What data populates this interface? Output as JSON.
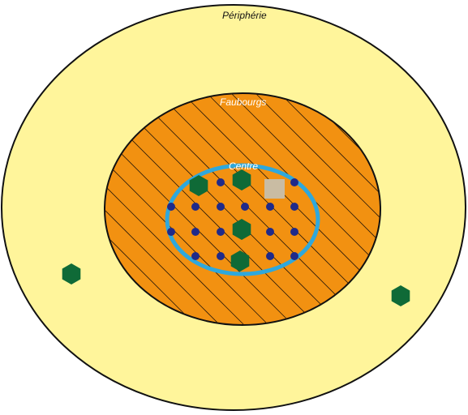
{
  "zones": {
    "periphery": {
      "label": "Périphérie",
      "fill": "#fff59b",
      "label_color": "#111111"
    },
    "suburbs": {
      "label": "Faubourgs",
      "fill": "#f29111",
      "hatch_color": "#2a1a0a",
      "label_color": "#ffffff"
    },
    "center": {
      "label": "Centre",
      "ring_color": "#2fa8dc",
      "label_color": "#ffffff"
    }
  },
  "colors": {
    "outline": "#111111",
    "dot": "#1f2a8a",
    "hexagon": "#0f6a37",
    "square": "#c9bca3"
  },
  "symbols": {
    "dot": "dot",
    "hexagon": "hexagon",
    "square": "square"
  }
}
